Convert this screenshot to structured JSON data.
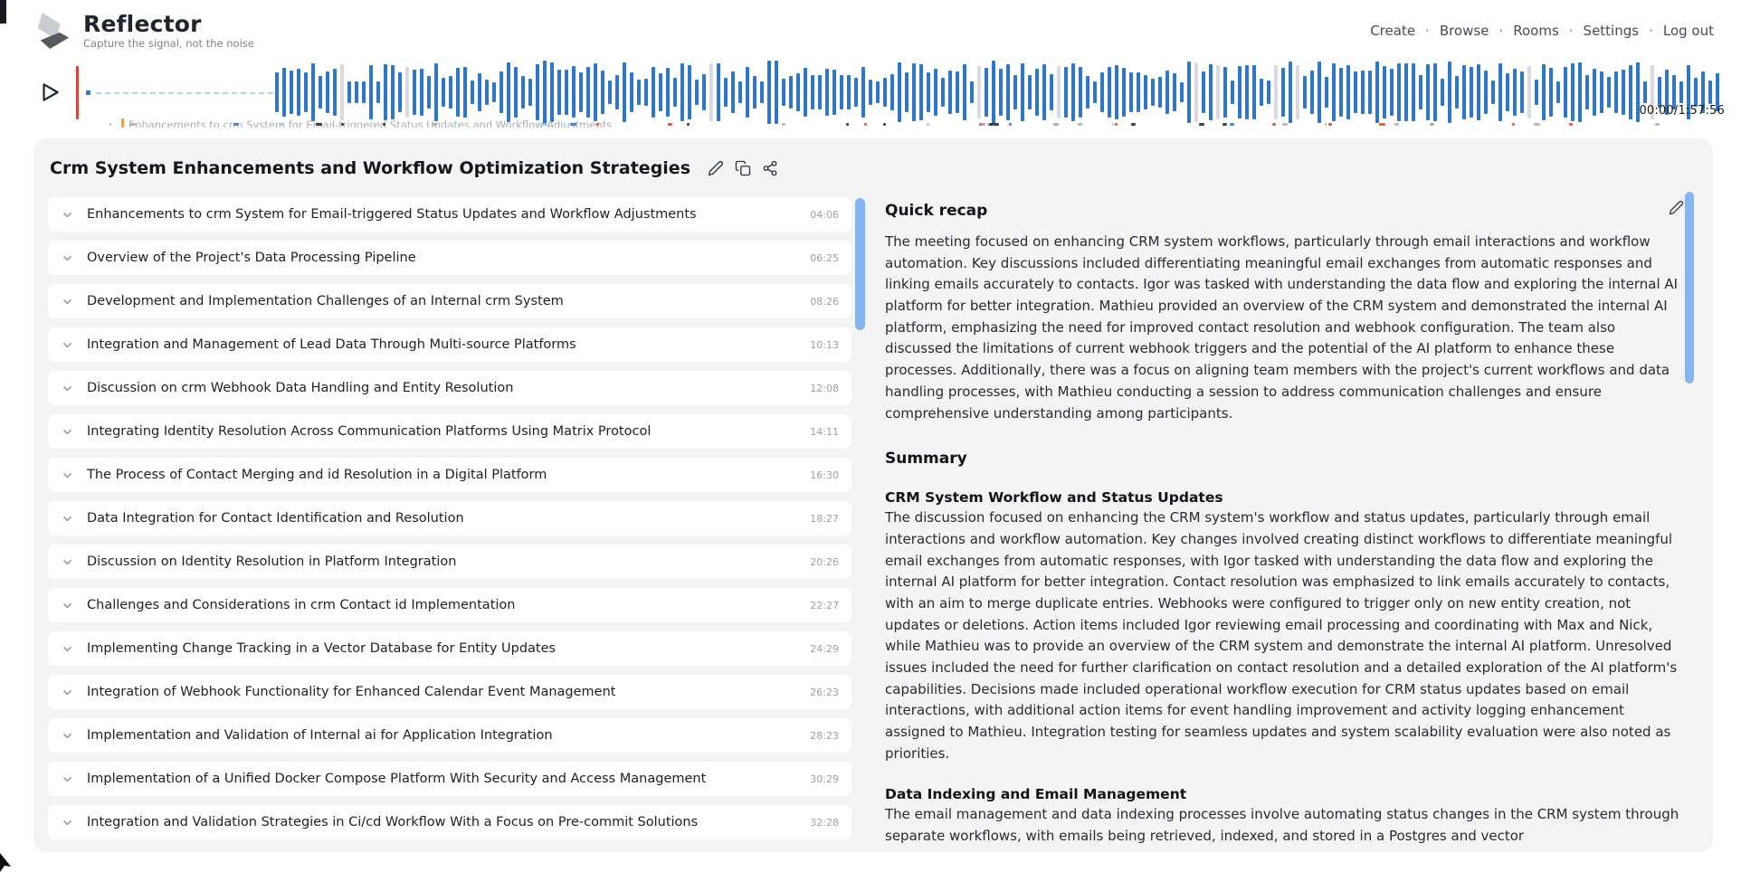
{
  "header": {
    "app_name": "Reflector",
    "tagline": "Capture the signal, not the noise",
    "nav_separator": "·",
    "nav": [
      {
        "label": "Create"
      },
      {
        "label": "Browse"
      },
      {
        "label": "Rooms"
      },
      {
        "label": "Settings"
      },
      {
        "label": "Log out"
      }
    ]
  },
  "player": {
    "time_display": "00:00/1:57:56",
    "chapter_marker_label": "Enhancements to crm System for Email-triggered Status Updates and Workflow Adjustments",
    "colors": {
      "bar_blue": "#2e77c5",
      "bar_gray": "#d9dadc",
      "playhead_red": "#e8402e",
      "dash_blue": "#9cc3ee",
      "chapter_tick_orange": "#f0a13c",
      "scrollbar_blue": "#85b6f2",
      "mark_dark": "#20242c",
      "mark_gray": "#a8adb5"
    }
  },
  "meeting": {
    "title": "Crm System Enhancements and Workflow Optimization Strategies",
    "topics": [
      {
        "title": "Enhancements to crm System for Email-triggered Status Updates and Workflow Adjustments",
        "timestamp": "04:06"
      },
      {
        "title": "Overview of the Project's Data Processing Pipeline",
        "timestamp": "06:25"
      },
      {
        "title": "Development and Implementation Challenges of an Internal crm System",
        "timestamp": "08:26"
      },
      {
        "title": "Integration and Management of Lead Data Through Multi-source Platforms",
        "timestamp": "10:13"
      },
      {
        "title": "Discussion on crm Webhook Data Handling and Entity Resolution",
        "timestamp": "12:08"
      },
      {
        "title": "Integrating Identity Resolution Across Communication Platforms Using Matrix Protocol",
        "timestamp": "14:11"
      },
      {
        "title": "The Process of Contact Merging and id Resolution in a Digital Platform",
        "timestamp": "16:30"
      },
      {
        "title": "Data Integration for Contact Identification and Resolution",
        "timestamp": "18:27"
      },
      {
        "title": "Discussion on Identity Resolution in Platform Integration",
        "timestamp": "20:26"
      },
      {
        "title": "Challenges and Considerations in crm Contact id Implementation",
        "timestamp": "22:27"
      },
      {
        "title": "Implementing Change Tracking in a Vector Database for Entity Updates",
        "timestamp": "24:29"
      },
      {
        "title": "Integration of Webhook Functionality for Enhanced Calendar Event Management",
        "timestamp": "26:23"
      },
      {
        "title": "Implementation and Validation of Internal ai for Application Integration",
        "timestamp": "28:23"
      },
      {
        "title": "Implementation of a Unified Docker Compose Platform With Security and Access Management",
        "timestamp": "30:29"
      },
      {
        "title": "Integration and Validation Strategies in Ci/cd Workflow With a Focus on Pre-commit Solutions",
        "timestamp": "32:28"
      }
    ],
    "recap": {
      "heading": "Quick recap",
      "text": "The meeting focused on enhancing CRM system workflows, particularly through email interactions and workflow automation. Key discussions included differentiating meaningful email exchanges from automatic responses and linking emails accurately to contacts. Igor was tasked with understanding the data flow and exploring the internal AI platform for better integration. Mathieu provided an overview of the CRM system and demonstrated the internal AI platform, emphasizing the need for improved contact resolution and webhook configuration. The team also discussed the limitations of current webhook triggers and the potential of the AI platform to enhance these processes. Additionally, there was a focus on aligning team members with the project's current workflows and data handling processes, with Mathieu conducting a session to address communication challenges and ensure comprehensive understanding among participants."
    },
    "summary": {
      "heading": "Summary",
      "sections": [
        {
          "heading": "CRM System Workflow and Status Updates",
          "text": "The discussion focused on enhancing the CRM system's workflow and status updates, particularly through email interactions and workflow automation. Key changes involved creating distinct workflows to differentiate meaningful email exchanges from automatic responses, with Igor tasked with understanding the data flow and exploring the internal AI platform for better integration. Contact resolution was emphasized to link emails accurately to contacts, with an aim to merge duplicate entries. Webhooks were configured to trigger only on new entity creation, not updates or deletions. Action items included Igor reviewing email processing and coordinating with Max and Nick, while Mathieu was to provide an overview of the CRM system and demonstrate the internal AI platform. Unresolved issues included the need for further clarification on contact resolution and a detailed exploration of the AI platform's capabilities. Decisions made included operational workflow execution for CRM status updates based on email interactions, with additional action items for event handling improvement and activity logging enhancement assigned to Mathieu. Integration testing for seamless updates and system scalability evaluation were also noted as priorities."
        },
        {
          "heading": "Data Indexing and Email Management",
          "text": "The email management and data indexing processes involve automating status changes in the CRM system through separate workflows, with emails being retrieved, indexed, and stored in a Postgres and vector"
        }
      ]
    }
  }
}
